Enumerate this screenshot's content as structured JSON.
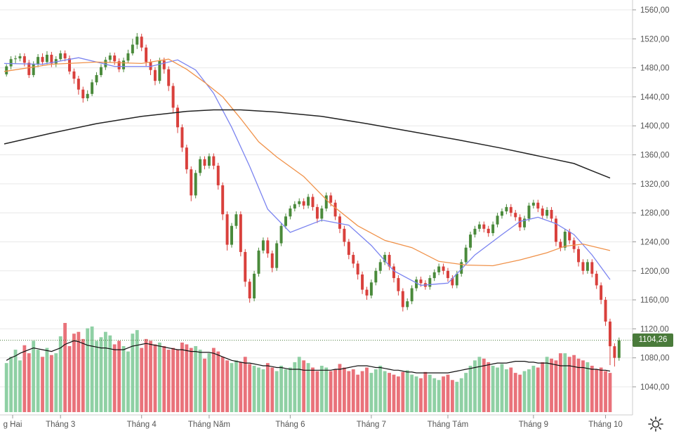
{
  "chart_data": {
    "type": "candlestick",
    "title": "",
    "ylabel": "",
    "xlabel": "",
    "ylim": [
      1024,
      1572
    ],
    "y_ticks": [
      "1560,00",
      "1520,00",
      "1480,00",
      "1440,00",
      "1400,00",
      "1360,00",
      "1320,00",
      "1280,00",
      "1240,00",
      "1200,00",
      "1160,00",
      "1120,00",
      "1080,00",
      "1040,00"
    ],
    "y_tick_values": [
      1560,
      1520,
      1480,
      1440,
      1400,
      1360,
      1320,
      1280,
      1240,
      1200,
      1160,
      1120,
      1080,
      1040
    ],
    "x_ticks": [
      "g Hai",
      "Tháng 3",
      "Tháng 4",
      "Tháng Năm",
      "Tháng 6",
      "Tháng 7",
      "Tháng Tám",
      "Tháng 9",
      "Tháng 10"
    ],
    "x_tick_bar_index": [
      0,
      12,
      30,
      45,
      63,
      81,
      98,
      117,
      133
    ],
    "last_price": 1104.26,
    "last_price_label": "1104,26",
    "colors": {
      "up": "#4a8a3b",
      "down": "#d9403c",
      "vol_up": "#8fd0a4",
      "vol_down": "#e9727a",
      "ma20": "#7b84f0",
      "ma50": "#f0924a",
      "ma200": "#222222",
      "vol_ma": "#111111",
      "grid": "#e8e8e8"
    },
    "series": [
      {
        "name": "MA20",
        "x": [
          0,
          8,
          16,
          24,
          32,
          38,
          42,
          46,
          50,
          54,
          58,
          63,
          70,
          76,
          81,
          86,
          92,
          98,
          104,
          110,
          114,
          118,
          122,
          126,
          130,
          134
        ],
        "values": [
          1486,
          1485,
          1494,
          1482,
          1482,
          1491,
          1477,
          1445,
          1398,
          1344,
          1285,
          1253,
          1270,
          1263,
          1235,
          1200,
          1180,
          1183,
          1222,
          1250,
          1268,
          1274,
          1265,
          1250,
          1222,
          1188
        ]
      },
      {
        "name": "MA50",
        "x": [
          0,
          10,
          20,
          30,
          36,
          40,
          44,
          48,
          52,
          56,
          60,
          66,
          72,
          78,
          84,
          90,
          96,
          102,
          108,
          114,
          120,
          124,
          128,
          134
        ],
        "values": [
          1475,
          1485,
          1488,
          1486,
          1492,
          1478,
          1460,
          1440,
          1410,
          1378,
          1357,
          1330,
          1292,
          1262,
          1242,
          1232,
          1213,
          1208,
          1207,
          1215,
          1225,
          1234,
          1237,
          1228
        ]
      },
      {
        "name": "MA200",
        "x": [
          0,
          10,
          20,
          30,
          40,
          46,
          52,
          60,
          70,
          80,
          90,
          100,
          110,
          120,
          126,
          130,
          134
        ],
        "values": [
          1375,
          1390,
          1403,
          1413,
          1420,
          1422,
          1422,
          1419,
          1413,
          1403,
          1392,
          1381,
          1369,
          1356,
          1348,
          1338,
          1328
        ]
      }
    ],
    "candles": [
      [
        1471,
        1482,
        1468,
        1485
      ],
      [
        1482,
        1492,
        1478,
        1496
      ],
      [
        1492,
        1493,
        1486,
        1497
      ],
      [
        1493,
        1496,
        1489,
        1500
      ],
      [
        1496,
        1487,
        1482,
        1500
      ],
      [
        1487,
        1470,
        1466,
        1491
      ],
      [
        1470,
        1485,
        1467,
        1489
      ],
      [
        1485,
        1495,
        1481,
        1499
      ],
      [
        1495,
        1488,
        1484,
        1500
      ],
      [
        1488,
        1498,
        1485,
        1503
      ],
      [
        1498,
        1486,
        1481,
        1502
      ],
      [
        1486,
        1492,
        1481,
        1496
      ],
      [
        1492,
        1500,
        1489,
        1504
      ],
      [
        1500,
        1493,
        1489,
        1504
      ],
      [
        1493,
        1475,
        1471,
        1497
      ],
      [
        1475,
        1465,
        1458,
        1479
      ],
      [
        1465,
        1450,
        1443,
        1469
      ],
      [
        1450,
        1438,
        1432,
        1454
      ],
      [
        1438,
        1444,
        1434,
        1449
      ],
      [
        1444,
        1460,
        1441,
        1464
      ],
      [
        1460,
        1470,
        1456,
        1474
      ],
      [
        1470,
        1481,
        1467,
        1485
      ],
      [
        1481,
        1491,
        1477,
        1495
      ],
      [
        1491,
        1497,
        1487,
        1501
      ],
      [
        1497,
        1489,
        1484,
        1501
      ],
      [
        1489,
        1478,
        1474,
        1493
      ],
      [
        1478,
        1490,
        1474,
        1494
      ],
      [
        1490,
        1500,
        1487,
        1505
      ],
      [
        1500,
        1512,
        1497,
        1520
      ],
      [
        1512,
        1523,
        1506,
        1528
      ],
      [
        1523,
        1508,
        1503,
        1527
      ],
      [
        1508,
        1488,
        1482,
        1512
      ],
      [
        1488,
        1477,
        1470,
        1492
      ],
      [
        1477,
        1462,
        1456,
        1481
      ],
      [
        1462,
        1490,
        1458,
        1494
      ],
      [
        1490,
        1478,
        1472,
        1494
      ],
      [
        1478,
        1455,
        1448,
        1482
      ],
      [
        1455,
        1425,
        1418,
        1459
      ],
      [
        1425,
        1398,
        1390,
        1429
      ],
      [
        1398,
        1370,
        1364,
        1402
      ],
      [
        1370,
        1340,
        1334,
        1374
      ],
      [
        1340,
        1304,
        1296,
        1344
      ],
      [
        1304,
        1335,
        1300,
        1339
      ],
      [
        1335,
        1354,
        1331,
        1358
      ],
      [
        1354,
        1345,
        1340,
        1358
      ],
      [
        1345,
        1358,
        1341,
        1362
      ],
      [
        1358,
        1345,
        1340,
        1362
      ],
      [
        1345,
        1318,
        1312,
        1349
      ],
      [
        1318,
        1278,
        1270,
        1322
      ],
      [
        1278,
        1236,
        1228,
        1282
      ],
      [
        1236,
        1262,
        1232,
        1266
      ],
      [
        1262,
        1278,
        1258,
        1282
      ],
      [
        1278,
        1226,
        1220,
        1282
      ],
      [
        1226,
        1185,
        1178,
        1230
      ],
      [
        1185,
        1162,
        1156,
        1189
      ],
      [
        1162,
        1196,
        1158,
        1200
      ],
      [
        1196,
        1228,
        1192,
        1232
      ],
      [
        1228,
        1242,
        1224,
        1246
      ],
      [
        1242,
        1224,
        1218,
        1246
      ],
      [
        1224,
        1204,
        1198,
        1228
      ],
      [
        1204,
        1238,
        1200,
        1242
      ],
      [
        1238,
        1262,
        1234,
        1266
      ],
      [
        1262,
        1275,
        1258,
        1279
      ],
      [
        1275,
        1286,
        1271,
        1290
      ],
      [
        1286,
        1292,
        1282,
        1296
      ],
      [
        1292,
        1296,
        1288,
        1300
      ],
      [
        1296,
        1290,
        1285,
        1300
      ],
      [
        1290,
        1302,
        1286,
        1306
      ],
      [
        1302,
        1288,
        1283,
        1306
      ],
      [
        1288,
        1272,
        1266,
        1292
      ],
      [
        1272,
        1286,
        1268,
        1290
      ],
      [
        1286,
        1304,
        1282,
        1308
      ],
      [
        1304,
        1294,
        1289,
        1308
      ],
      [
        1294,
        1275,
        1270,
        1298
      ],
      [
        1275,
        1258,
        1252,
        1279
      ],
      [
        1258,
        1240,
        1234,
        1262
      ],
      [
        1240,
        1222,
        1216,
        1244
      ],
      [
        1222,
        1210,
        1204,
        1226
      ],
      [
        1210,
        1195,
        1188,
        1214
      ],
      [
        1195,
        1174,
        1168,
        1199
      ],
      [
        1174,
        1166,
        1160,
        1178
      ],
      [
        1166,
        1184,
        1162,
        1188
      ],
      [
        1184,
        1200,
        1180,
        1204
      ],
      [
        1200,
        1212,
        1196,
        1216
      ],
      [
        1212,
        1222,
        1208,
        1226
      ],
      [
        1222,
        1206,
        1201,
        1226
      ],
      [
        1206,
        1190,
        1184,
        1210
      ],
      [
        1190,
        1172,
        1166,
        1194
      ],
      [
        1172,
        1150,
        1144,
        1176
      ],
      [
        1150,
        1158,
        1146,
        1162
      ],
      [
        1158,
        1176,
        1154,
        1180
      ],
      [
        1176,
        1188,
        1172,
        1192
      ],
      [
        1188,
        1183,
        1178,
        1192
      ],
      [
        1183,
        1178,
        1174,
        1187
      ],
      [
        1178,
        1190,
        1174,
        1194
      ],
      [
        1190,
        1198,
        1186,
        1202
      ],
      [
        1198,
        1206,
        1194,
        1210
      ],
      [
        1206,
        1200,
        1195,
        1210
      ],
      [
        1200,
        1190,
        1185,
        1204
      ],
      [
        1190,
        1180,
        1176,
        1194
      ],
      [
        1180,
        1196,
        1176,
        1200
      ],
      [
        1196,
        1212,
        1192,
        1216
      ],
      [
        1212,
        1232,
        1208,
        1236
      ],
      [
        1232,
        1250,
        1228,
        1254
      ],
      [
        1250,
        1258,
        1246,
        1262
      ],
      [
        1258,
        1264,
        1254,
        1268
      ],
      [
        1264,
        1258,
        1253,
        1268
      ],
      [
        1258,
        1252,
        1247,
        1262
      ],
      [
        1252,
        1264,
        1248,
        1268
      ],
      [
        1264,
        1276,
        1260,
        1280
      ],
      [
        1276,
        1282,
        1272,
        1286
      ],
      [
        1282,
        1288,
        1278,
        1292
      ],
      [
        1288,
        1280,
        1275,
        1292
      ],
      [
        1280,
        1274,
        1269,
        1284
      ],
      [
        1274,
        1260,
        1255,
        1278
      ],
      [
        1260,
        1272,
        1256,
        1276
      ],
      [
        1272,
        1290,
        1268,
        1294
      ],
      [
        1290,
        1294,
        1286,
        1298
      ],
      [
        1294,
        1286,
        1281,
        1298
      ],
      [
        1286,
        1276,
        1271,
        1290
      ],
      [
        1276,
        1284,
        1272,
        1288
      ],
      [
        1284,
        1272,
        1267,
        1288
      ],
      [
        1272,
        1240,
        1234,
        1276
      ],
      [
        1240,
        1232,
        1227,
        1244
      ],
      [
        1232,
        1254,
        1228,
        1258
      ],
      [
        1254,
        1242,
        1237,
        1258
      ],
      [
        1242,
        1230,
        1225,
        1246
      ],
      [
        1230,
        1212,
        1206,
        1234
      ],
      [
        1212,
        1200,
        1195,
        1216
      ],
      [
        1200,
        1212,
        1196,
        1216
      ],
      [
        1212,
        1196,
        1191,
        1216
      ],
      [
        1196,
        1180,
        1175,
        1200
      ],
      [
        1180,
        1160,
        1154,
        1184
      ],
      [
        1160,
        1130,
        1124,
        1164
      ],
      [
        1130,
        1096,
        1070,
        1134
      ],
      [
        1096,
        1080,
        1068,
        1100
      ],
      [
        1080,
        1104,
        1076,
        1108
      ]
    ],
    "volume_ma": [
      0.58,
      0.61,
      0.63,
      0.66,
      0.68,
      0.7,
      0.72,
      0.71,
      0.7,
      0.69,
      0.68,
      0.7,
      0.72,
      0.76,
      0.78,
      0.8,
      0.79,
      0.77,
      0.75,
      0.74,
      0.73,
      0.72,
      0.72,
      0.71,
      0.7,
      0.7,
      0.7,
      0.72,
      0.74,
      0.75,
      0.76,
      0.77,
      0.76,
      0.75,
      0.74,
      0.73,
      0.72,
      0.71,
      0.7,
      0.7,
      0.69,
      0.68,
      0.68,
      0.67,
      0.67,
      0.67,
      0.66,
      0.64,
      0.62,
      0.6,
      0.58,
      0.57,
      0.56,
      0.55,
      0.55,
      0.54,
      0.53,
      0.52,
      0.52,
      0.51,
      0.5,
      0.5,
      0.49,
      0.48,
      0.48,
      0.48,
      0.47,
      0.47,
      0.47,
      0.47,
      0.47,
      0.47,
      0.47,
      0.48,
      0.48,
      0.49,
      0.5,
      0.51,
      0.52,
      0.52,
      0.52,
      0.51,
      0.5,
      0.5,
      0.49,
      0.48,
      0.47,
      0.47,
      0.46,
      0.45,
      0.45,
      0.44,
      0.44,
      0.44,
      0.44,
      0.44,
      0.44,
      0.44,
      0.44,
      0.45,
      0.46,
      0.47,
      0.48,
      0.49,
      0.5,
      0.51,
      0.52,
      0.53,
      0.54,
      0.55,
      0.55,
      0.55,
      0.56,
      0.57,
      0.57,
      0.57,
      0.56,
      0.56,
      0.55,
      0.55,
      0.55,
      0.54,
      0.53,
      0.52,
      0.52,
      0.52,
      0.51,
      0.5,
      0.5,
      0.49,
      0.48,
      0.48,
      0.47,
      0.47,
      0.46
    ],
    "volume": [
      0.55,
      0.62,
      0.7,
      0.58,
      0.75,
      0.66,
      0.8,
      0.7,
      0.62,
      0.72,
      0.64,
      0.66,
      0.85,
      1.0,
      0.74,
      0.88,
      0.9,
      0.82,
      0.94,
      0.96,
      0.8,
      0.84,
      0.9,
      0.86,
      0.76,
      0.8,
      0.74,
      0.68,
      0.88,
      0.92,
      0.72,
      0.82,
      0.8,
      0.76,
      0.78,
      0.74,
      0.7,
      0.72,
      0.7,
      0.78,
      0.76,
      0.72,
      0.74,
      0.7,
      0.6,
      0.66,
      0.72,
      0.68,
      0.62,
      0.58,
      0.55,
      0.58,
      0.56,
      0.62,
      0.54,
      0.52,
      0.5,
      0.48,
      0.55,
      0.5,
      0.46,
      0.52,
      0.48,
      0.5,
      0.56,
      0.62,
      0.58,
      0.55,
      0.5,
      0.46,
      0.52,
      0.5,
      0.46,
      0.48,
      0.54,
      0.5,
      0.46,
      0.48,
      0.42,
      0.46,
      0.5,
      0.44,
      0.48,
      0.52,
      0.46,
      0.44,
      0.42,
      0.4,
      0.45,
      0.47,
      0.42,
      0.4,
      0.38,
      0.45,
      0.42,
      0.38,
      0.36,
      0.4,
      0.42,
      0.36,
      0.34,
      0.38,
      0.44,
      0.52,
      0.58,
      0.62,
      0.6,
      0.56,
      0.52,
      0.5,
      0.54,
      0.48,
      0.5,
      0.44,
      0.42,
      0.46,
      0.48,
      0.52,
      0.5,
      0.56,
      0.62,
      0.6,
      0.58,
      0.66,
      0.66,
      0.62,
      0.64,
      0.6,
      0.58,
      0.56,
      0.52,
      0.48,
      0.5,
      0.46,
      0.44
    ]
  }
}
